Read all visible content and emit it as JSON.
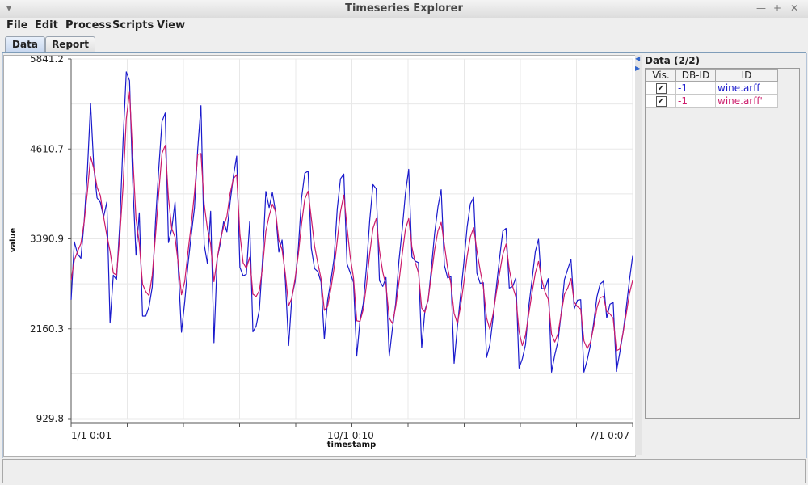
{
  "window": {
    "title": "Timeseries Explorer"
  },
  "menu": {
    "items": [
      {
        "label": "File"
      },
      {
        "label": "Edit"
      },
      {
        "label": "Process"
      },
      {
        "label": "Scripts"
      },
      {
        "label": "View"
      }
    ]
  },
  "tabs": [
    {
      "label": "Data",
      "active": true
    },
    {
      "label": "Report",
      "active": false
    }
  ],
  "datapanel": {
    "title": "Data (2/2)",
    "columns": [
      "Vis.",
      "DB-ID",
      "ID"
    ],
    "rows": [
      {
        "visible": true,
        "dbid": "-1",
        "id": "wine.arff",
        "color": "#1a1acc"
      },
      {
        "visible": true,
        "dbid": "-1",
        "id": "wine.arff'",
        "color": "#cc1a6a"
      }
    ]
  },
  "chart_data": {
    "type": "line",
    "xlabel": "timestamp",
    "ylabel": "value",
    "ylim": [
      929.8,
      5841.2
    ],
    "yticks": [
      "5841.2",
      "4610.7",
      "3390.9",
      "2160.3",
      "929.8"
    ],
    "xtick_labels": [
      "1/1 0:01",
      "10/1 0:10",
      "7/1 0:07"
    ],
    "grid": true,
    "series": [
      {
        "color": "#1a1acc",
        "values": [
          2554,
          3345,
          3180,
          3121,
          3618,
          4303,
          5231,
          4360,
          3945,
          3883,
          3683,
          3888,
          2238,
          2890,
          2827,
          3596,
          4722,
          5666,
          5546,
          4152,
          3163,
          3741,
          2332,
          2332,
          2460,
          2728,
          3639,
          4346,
          4988,
          5104,
          3335,
          3513,
          3888,
          2982,
          2111,
          2526,
          3032,
          3430,
          3811,
          4614,
          5204,
          3309,
          3046,
          3762,
          1967,
          3119,
          3330,
          3624,
          3480,
          3887,
          4246,
          4516,
          2997,
          2881,
          2902,
          3617,
          2116,
          2196,
          2419,
          3112,
          4033,
          3813,
          4018,
          3751,
          3206,
          3370,
          2820,
          1929,
          2592,
          2802,
          3260,
          3941,
          4282,
          4309,
          3259,
          2979,
          2940,
          2795,
          2018,
          2544,
          2811,
          3115,
          3798,
          4205,
          4271,
          3042,
          2922,
          2792,
          1784,
          2266,
          2504,
          3008,
          3645,
          4126,
          4069,
          2816,
          2736,
          2858,
          1781,
          2164,
          2504,
          3095,
          3517,
          4011,
          4335,
          3138,
          3083,
          3061,
          1897,
          2413,
          2547,
          2987,
          3461,
          3823,
          4058,
          3025,
          2851,
          2874,
          1686,
          2190,
          2625,
          3064,
          3546,
          3863,
          3951,
          2917,
          2779,
          2787,
          1766,
          1936,
          2313,
          2730,
          3126,
          3493,
          3529,
          2714,
          2733,
          2852,
          1621,
          1745,
          1943,
          2462,
          2829,
          3211,
          3380,
          2708,
          2702,
          2842,
          1566,
          1801,
          1987,
          2379,
          2832,
          2973,
          3103,
          2431,
          2548,
          2555,
          1567,
          1732,
          1939,
          2241,
          2594,
          2771,
          2807,
          2306,
          2493,
          2519,
          1576,
          1821,
          2090,
          2440,
          2818,
          3153
        ]
      },
      {
        "color": "#cc1a6a",
        "values": [
          2822,
          3095,
          3215,
          3320,
          3612,
          4026,
          4510,
          4343,
          4091,
          3977,
          3687,
          3434,
          3215,
          2920,
          2890,
          3433,
          4102,
          5026,
          5390,
          4512,
          3659,
          3323,
          2767,
          2665,
          2610,
          2888,
          3439,
          4021,
          4553,
          4664,
          3944,
          3528,
          3409,
          3049,
          2623,
          2803,
          3202,
          3574,
          4016,
          4540,
          4551,
          3861,
          3523,
          3308,
          2802,
          3114,
          3382,
          3551,
          3693,
          4007,
          4208,
          4262,
          3452,
          3059,
          2984,
          3135,
          2631,
          2597,
          2680,
          3003,
          3488,
          3700,
          3859,
          3757,
          3367,
          3239,
          2910,
          2471,
          2580,
          2844,
          3173,
          3590,
          3928,
          4037,
          3667,
          3288,
          3055,
          2845,
          2410,
          2464,
          2698,
          2983,
          3363,
          3759,
          3984,
          3543,
          3135,
          2854,
          2268,
          2259,
          2422,
          2763,
          3191,
          3529,
          3661,
          3225,
          2932,
          2749,
          2306,
          2230,
          2458,
          2799,
          3176,
          3520,
          3663,
          3271,
          3065,
          2922,
          2441,
          2382,
          2562,
          2891,
          3236,
          3494,
          3611,
          3303,
          2986,
          2776,
          2368,
          2232,
          2472,
          2793,
          3145,
          3412,
          3538,
          3225,
          2959,
          2728,
          2305,
          2152,
          2364,
          2654,
          2921,
          3176,
          3315,
          2969,
          2736,
          2594,
          2122,
          1929,
          2073,
          2357,
          2653,
          2917,
          3078,
          2830,
          2661,
          2562,
          2085,
          1976,
          2093,
          2366,
          2629,
          2716,
          2844,
          2521,
          2460,
          2427,
          1993,
          1887,
          1976,
          2185,
          2443,
          2582,
          2600,
          2397,
          2360,
          2301,
          1858,
          1880,
          2085,
          2356,
          2637,
          2818
        ]
      }
    ]
  }
}
